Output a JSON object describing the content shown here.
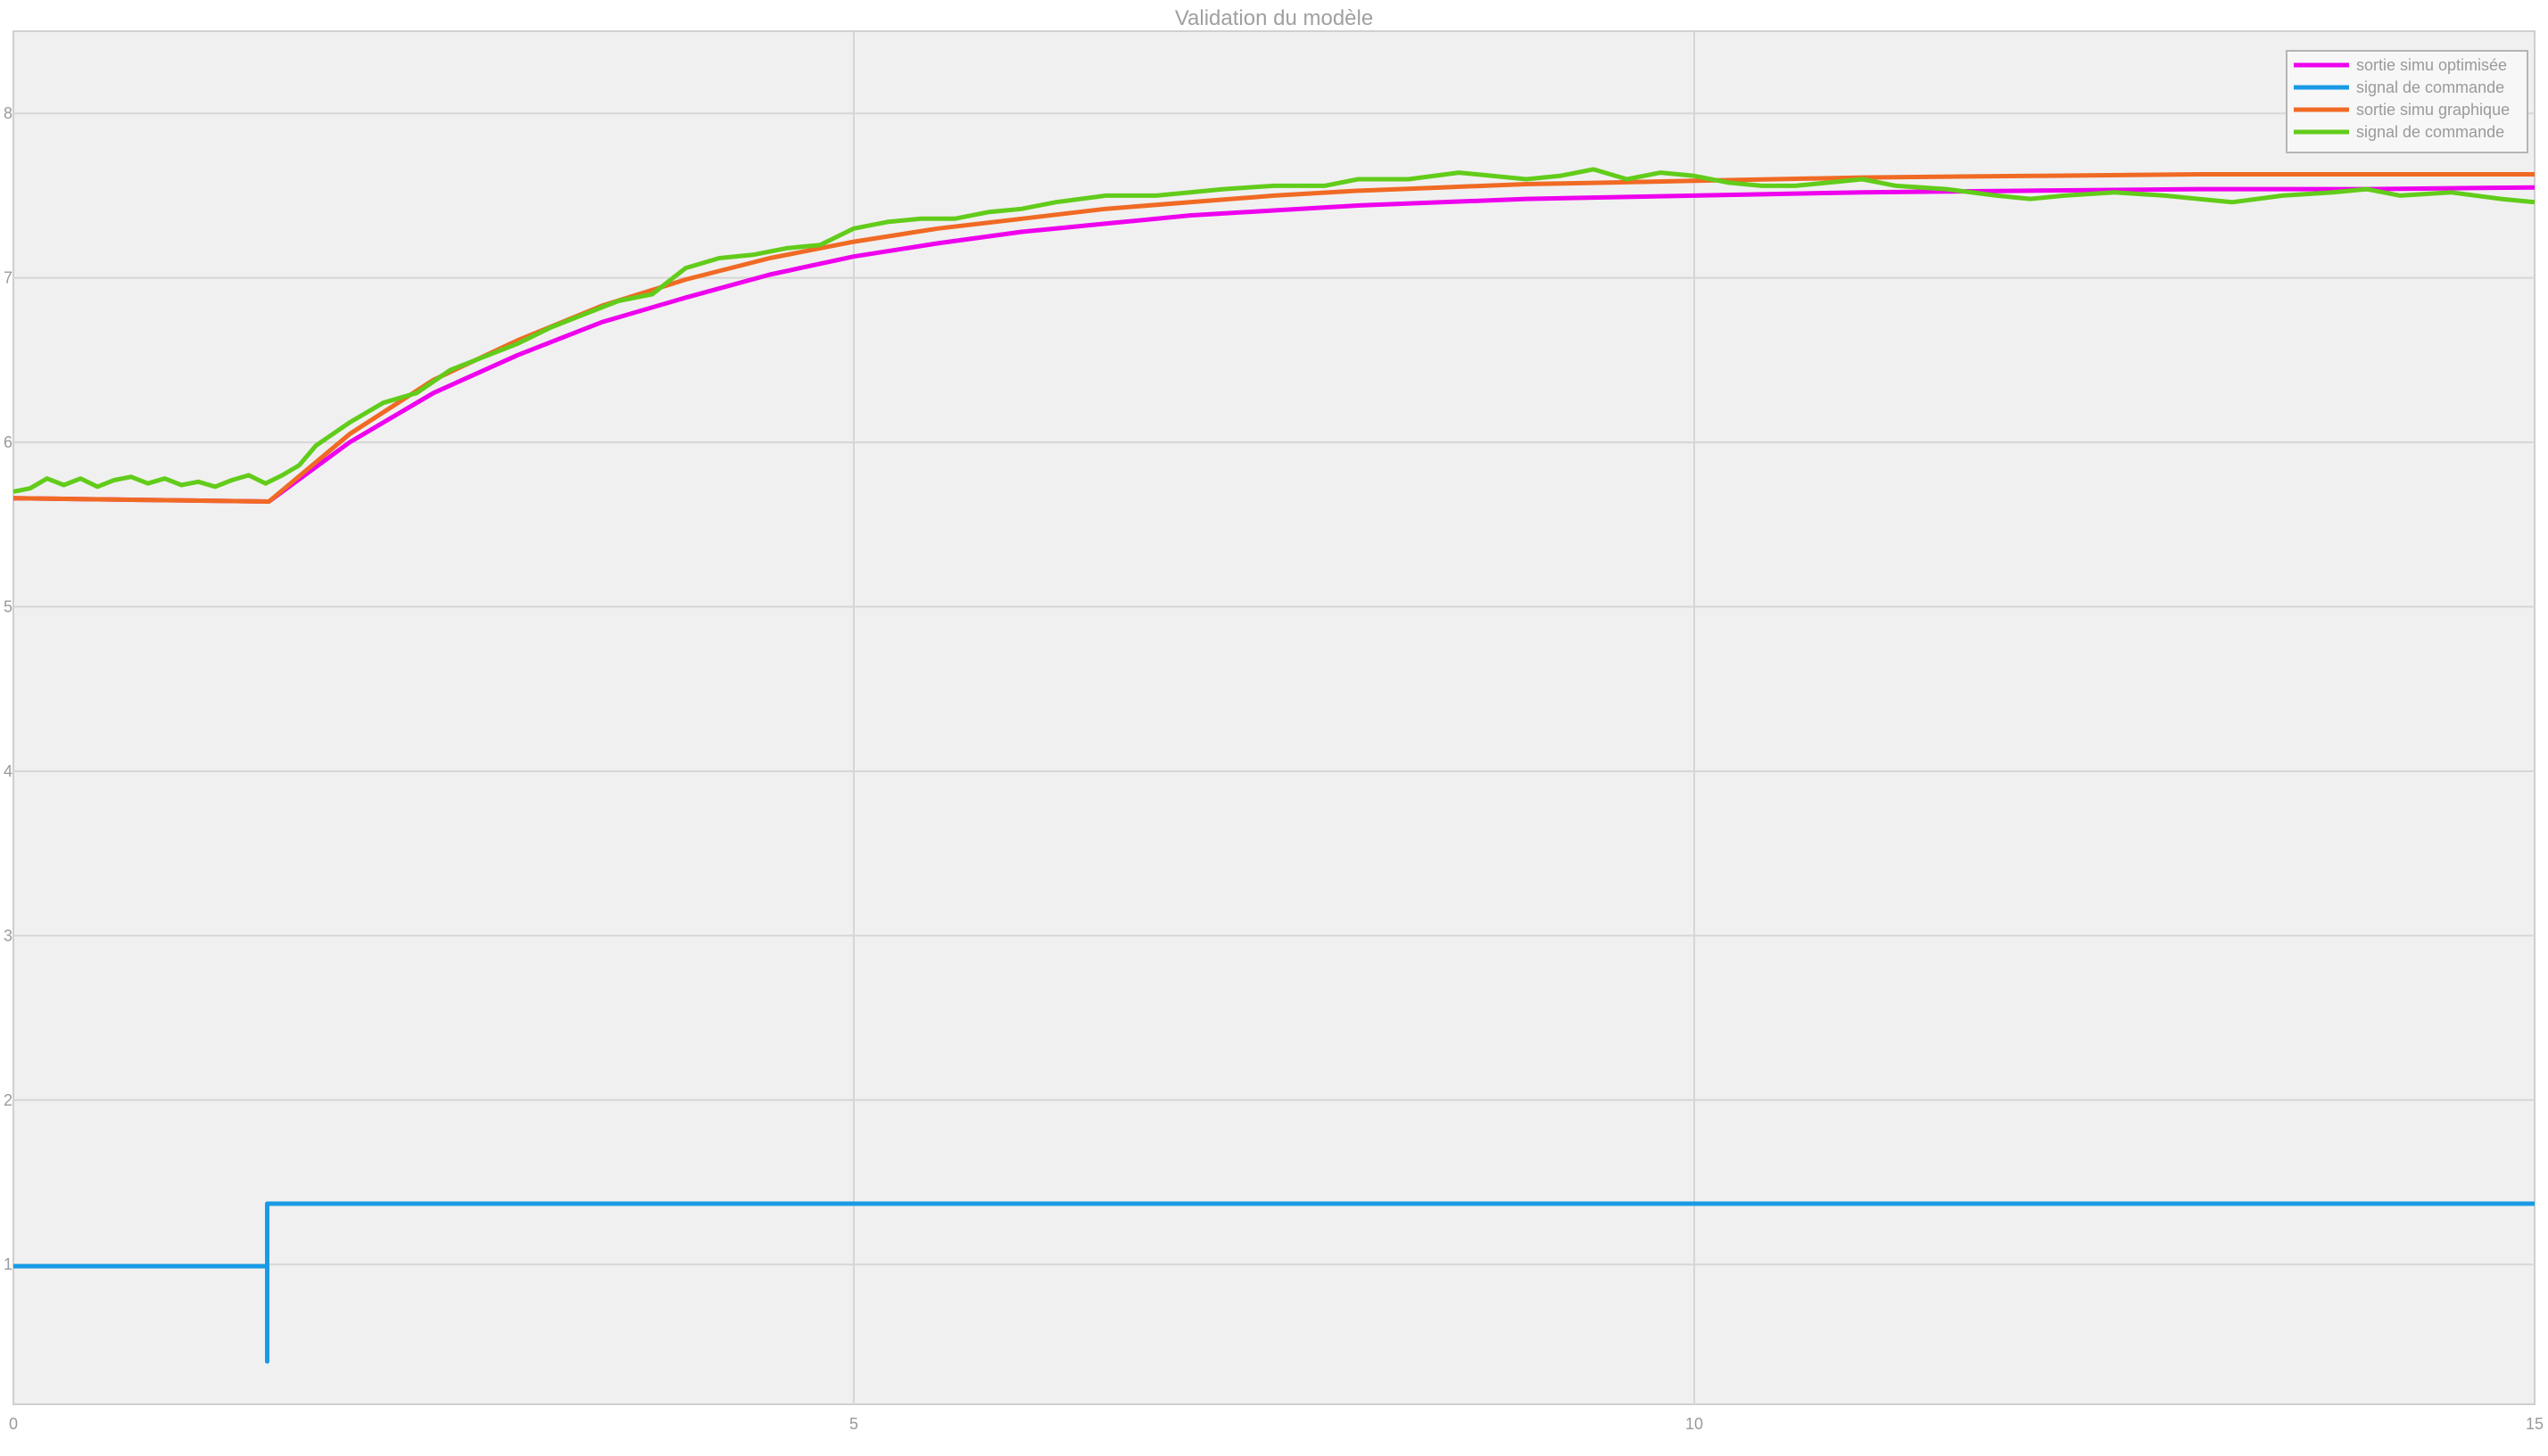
{
  "chart_data": {
    "type": "line",
    "title": "Validation du modèle",
    "xlabel": "",
    "ylabel": "",
    "xlim": [
      0,
      15
    ],
    "ylim": [
      0.15,
      8.5
    ],
    "xticks": [
      0,
      5,
      10,
      15
    ],
    "yticks": [
      1,
      2,
      3,
      4,
      5,
      6,
      7,
      8
    ],
    "grid": true,
    "legend_position": "top-right",
    "series": [
      {
        "name": "sortie simu optimisée",
        "color": "#ee00ee",
        "x": [
          0,
          1.52,
          2.0,
          2.5,
          3.0,
          3.5,
          4.0,
          4.5,
          5.0,
          5.5,
          6.0,
          6.5,
          7.0,
          7.5,
          8.0,
          8.5,
          9.0,
          9.5,
          10.0,
          11.0,
          12.0,
          13.0,
          14.0,
          15.0
        ],
        "y": [
          5.66,
          5.64,
          6.0,
          6.3,
          6.53,
          6.73,
          6.88,
          7.02,
          7.13,
          7.21,
          7.28,
          7.33,
          7.38,
          7.41,
          7.44,
          7.46,
          7.48,
          7.49,
          7.5,
          7.52,
          7.53,
          7.54,
          7.54,
          7.55
        ]
      },
      {
        "name": "signal de commande",
        "color": "#1a9ae6",
        "x": [
          0,
          1.51,
          1.51,
          1.51,
          1.52,
          15.0
        ],
        "y": [
          0.99,
          0.99,
          0.41,
          1.37,
          1.37,
          1.37
        ]
      },
      {
        "name": "sortie simu graphique",
        "color": "#f06a24",
        "x": [
          0,
          1.52,
          2.0,
          2.5,
          3.0,
          3.5,
          4.0,
          4.5,
          5.0,
          5.5,
          6.0,
          6.5,
          7.0,
          7.5,
          8.0,
          8.5,
          9.0,
          9.5,
          10.0,
          11.0,
          12.0,
          13.0,
          14.0,
          15.0
        ],
        "y": [
          5.66,
          5.64,
          6.05,
          6.38,
          6.62,
          6.83,
          6.99,
          7.12,
          7.22,
          7.3,
          7.36,
          7.42,
          7.46,
          7.5,
          7.53,
          7.55,
          7.57,
          7.58,
          7.59,
          7.61,
          7.62,
          7.63,
          7.63,
          7.63
        ]
      },
      {
        "name": "signal de commande",
        "color": "#62cc1a",
        "x": [
          0,
          0.1,
          0.2,
          0.3,
          0.4,
          0.5,
          0.6,
          0.7,
          0.8,
          0.9,
          1.0,
          1.1,
          1.2,
          1.3,
          1.4,
          1.5,
          1.6,
          1.7,
          1.8,
          2.0,
          2.2,
          2.4,
          2.6,
          2.8,
          3.0,
          3.2,
          3.4,
          3.6,
          3.8,
          4.0,
          4.2,
          4.4,
          4.6,
          4.8,
          5.0,
          5.2,
          5.4,
          5.6,
          5.8,
          6.0,
          6.2,
          6.5,
          6.8,
          7.0,
          7.2,
          7.5,
          7.8,
          8.0,
          8.3,
          8.6,
          8.8,
          9.0,
          9.2,
          9.4,
          9.6,
          9.8,
          10.0,
          10.2,
          10.4,
          10.6,
          10.8,
          11.0,
          11.2,
          11.5,
          11.8,
          12.0,
          12.2,
          12.5,
          12.8,
          13.0,
          13.2,
          13.5,
          13.8,
          14.0,
          14.2,
          14.5,
          14.8,
          15.0
        ],
        "y": [
          5.7,
          5.72,
          5.78,
          5.74,
          5.78,
          5.73,
          5.77,
          5.79,
          5.75,
          5.78,
          5.74,
          5.76,
          5.73,
          5.77,
          5.8,
          5.75,
          5.8,
          5.86,
          5.98,
          6.12,
          6.24,
          6.3,
          6.44,
          6.52,
          6.6,
          6.7,
          6.78,
          6.86,
          6.9,
          7.06,
          7.12,
          7.14,
          7.18,
          7.2,
          7.3,
          7.34,
          7.36,
          7.36,
          7.4,
          7.42,
          7.46,
          7.5,
          7.5,
          7.52,
          7.54,
          7.56,
          7.56,
          7.6,
          7.6,
          7.64,
          7.62,
          7.6,
          7.62,
          7.66,
          7.6,
          7.64,
          7.62,
          7.58,
          7.56,
          7.56,
          7.58,
          7.6,
          7.56,
          7.54,
          7.5,
          7.48,
          7.5,
          7.52,
          7.5,
          7.48,
          7.46,
          7.5,
          7.52,
          7.54,
          7.5,
          7.52,
          7.48,
          7.46
        ]
      }
    ]
  }
}
